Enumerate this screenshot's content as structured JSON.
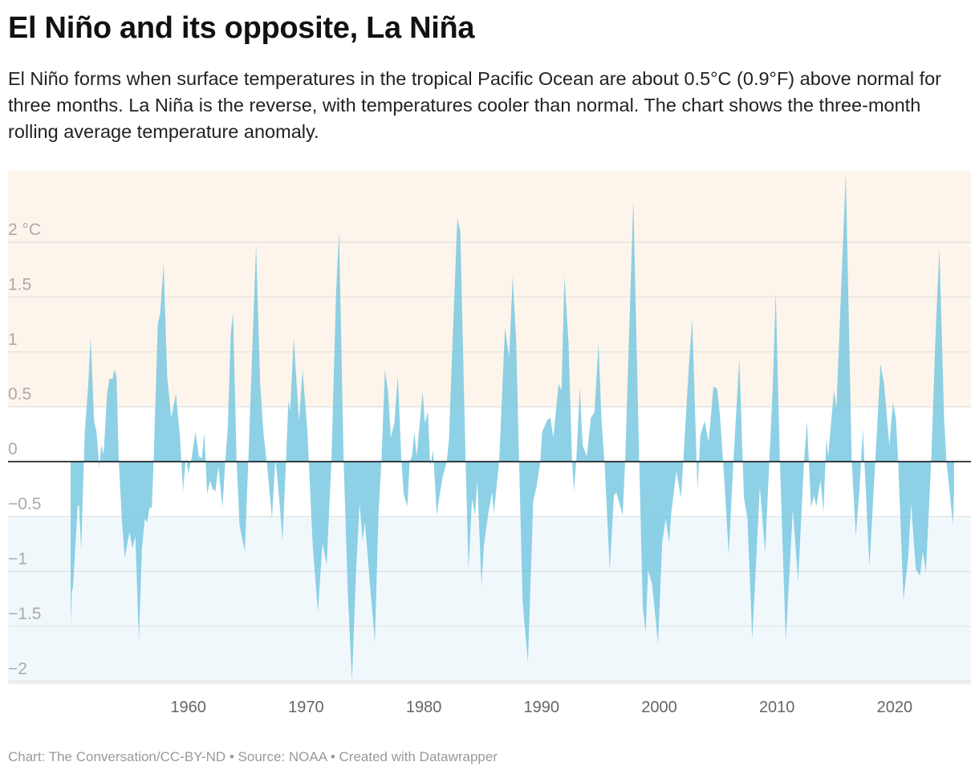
{
  "title": "El Niño and its opposite, La Niña",
  "subtitle": "El Niño forms when surface temperatures in the tropical Pacific Ocean are about 0.5°C (0.9°F) above normal for three months. La Niña is the reverse, with temperatures cooler than normal. The chart shows the three-month rolling average temperature anomaly.",
  "footer": "Chart: The Conversation/CC-BY-ND • Source: NOAA • Created with Datawrapper",
  "chart_data": {
    "type": "area",
    "title": "El Niño and its opposite, La Niña",
    "xlabel": "",
    "ylabel": "",
    "xlim": [
      1950,
      2025.1
    ],
    "ylim": [
      -2.02,
      2.65
    ],
    "grid": true,
    "y_ticks": [
      {
        "value": 2,
        "label": "2 °C"
      },
      {
        "value": 1.5,
        "label": "1.5"
      },
      {
        "value": 1,
        "label": "1"
      },
      {
        "value": 0.5,
        "label": "0.5"
      },
      {
        "value": 0,
        "label": "0"
      },
      {
        "value": -0.5,
        "label": "−0.5"
      },
      {
        "value": -1,
        "label": "−1"
      },
      {
        "value": -1.5,
        "label": "−1.5"
      },
      {
        "value": -2,
        "label": "−2"
      }
    ],
    "x_ticks": [
      {
        "value": 1960,
        "label": "1960"
      },
      {
        "value": 1970,
        "label": "1970"
      },
      {
        "value": 1980,
        "label": "1980"
      },
      {
        "value": 1990,
        "label": "1990"
      },
      {
        "value": 2000,
        "label": "2000"
      },
      {
        "value": 2010,
        "label": "2010"
      },
      {
        "value": 2020,
        "label": "2020"
      }
    ],
    "bands": [
      {
        "from": 0.5,
        "to": 2.65,
        "color": "#fdf5eb"
      },
      {
        "from": -2.02,
        "to": -0.5,
        "color": "#f1f8fc"
      }
    ],
    "colors": {
      "area": "#72c6e0",
      "zero_line": "#111111",
      "grid": "#e2e2e2"
    },
    "points": [
      [
        1950.0,
        -1.5
      ],
      [
        1950.1,
        -1.18
      ],
      [
        1950.2,
        -1.15
      ],
      [
        1950.6,
        -0.41
      ],
      [
        1950.7,
        -0.39
      ],
      [
        1950.9,
        -0.8
      ],
      [
        1951.2,
        0.27
      ],
      [
        1951.5,
        0.71
      ],
      [
        1951.7,
        1.14
      ],
      [
        1952.0,
        0.37
      ],
      [
        1952.2,
        0.27
      ],
      [
        1952.45,
        -0.06
      ],
      [
        1952.6,
        0.15
      ],
      [
        1952.8,
        0.07
      ],
      [
        1953.1,
        0.62
      ],
      [
        1953.3,
        0.76
      ],
      [
        1953.55,
        0.75
      ],
      [
        1953.7,
        0.84
      ],
      [
        1953.9,
        0.78
      ],
      [
        1954.1,
        -0.01
      ],
      [
        1954.35,
        -0.52
      ],
      [
        1954.6,
        -0.88
      ],
      [
        1955.0,
        -0.64
      ],
      [
        1955.25,
        -0.79
      ],
      [
        1955.5,
        -0.68
      ],
      [
        1955.8,
        -1.64
      ],
      [
        1956.05,
        -0.8
      ],
      [
        1956.3,
        -0.52
      ],
      [
        1956.5,
        -0.55
      ],
      [
        1956.7,
        -0.42
      ],
      [
        1956.9,
        -0.42
      ],
      [
        1957.05,
        0
      ],
      [
        1957.4,
        1.25
      ],
      [
        1957.6,
        1.35
      ],
      [
        1957.9,
        1.8
      ],
      [
        1958.2,
        0.78
      ],
      [
        1958.55,
        0.4
      ],
      [
        1958.95,
        0.62
      ],
      [
        1959.3,
        0.21
      ],
      [
        1959.55,
        -0.27
      ],
      [
        1959.8,
        0.05
      ],
      [
        1960.0,
        -0.11
      ],
      [
        1960.25,
        0.02
      ],
      [
        1960.6,
        0.27
      ],
      [
        1960.9,
        0.05
      ],
      [
        1961.15,
        0.03
      ],
      [
        1961.35,
        0.27
      ],
      [
        1961.6,
        -0.3
      ],
      [
        1961.85,
        -0.17
      ],
      [
        1962.05,
        -0.25
      ],
      [
        1962.3,
        -0.27
      ],
      [
        1962.55,
        -0.04
      ],
      [
        1962.9,
        -0.42
      ],
      [
        1963.15,
        0.02
      ],
      [
        1963.35,
        0.3
      ],
      [
        1963.6,
        1.16
      ],
      [
        1963.8,
        1.36
      ],
      [
        1964.1,
        0.02
      ],
      [
        1964.35,
        -0.58
      ],
      [
        1964.8,
        -0.82
      ],
      [
        1965.1,
        0.02
      ],
      [
        1965.75,
        1.98
      ],
      [
        1966.1,
        0.71
      ],
      [
        1966.4,
        0.24
      ],
      [
        1966.7,
        -0.04
      ],
      [
        1967.1,
        -0.52
      ],
      [
        1967.4,
        0.03
      ],
      [
        1967.75,
        -0.38
      ],
      [
        1968.0,
        -0.72
      ],
      [
        1968.3,
        0.02
      ],
      [
        1968.5,
        0.56
      ],
      [
        1968.65,
        0.46
      ],
      [
        1968.95,
        1.13
      ],
      [
        1969.4,
        0.37
      ],
      [
        1969.7,
        0.84
      ],
      [
        1970.1,
        0.3
      ],
      [
        1970.55,
        -0.74
      ],
      [
        1971.0,
        -1.37
      ],
      [
        1971.4,
        -0.74
      ],
      [
        1971.75,
        -0.94
      ],
      [
        1972.15,
        -0.01
      ],
      [
        1972.55,
        1.54
      ],
      [
        1972.8,
        2.1
      ],
      [
        1973.2,
        -0.01
      ],
      [
        1973.55,
        -1.21
      ],
      [
        1973.9,
        -2.0
      ],
      [
        1974.25,
        -1.0
      ],
      [
        1974.55,
        -0.38
      ],
      [
        1974.8,
        -0.72
      ],
      [
        1975.0,
        -0.55
      ],
      [
        1975.45,
        -1.15
      ],
      [
        1975.85,
        -1.64
      ],
      [
        1976.15,
        -0.49
      ],
      [
        1976.4,
        0
      ],
      [
        1976.7,
        0.84
      ],
      [
        1976.95,
        0.65
      ],
      [
        1977.2,
        0.22
      ],
      [
        1977.5,
        0.35
      ],
      [
        1977.8,
        0.79
      ],
      [
        1978.1,
        0
      ],
      [
        1978.3,
        -0.3
      ],
      [
        1978.6,
        -0.41
      ],
      [
        1978.8,
        0
      ],
      [
        1979.0,
        0.05
      ],
      [
        1979.2,
        0.27
      ],
      [
        1979.4,
        0.05
      ],
      [
        1979.9,
        0.64
      ],
      [
        1980.1,
        0.35
      ],
      [
        1980.35,
        0.46
      ],
      [
        1980.55,
        -0.04
      ],
      [
        1980.8,
        0.1
      ],
      [
        1981.1,
        -0.49
      ],
      [
        1981.4,
        -0.27
      ],
      [
        1981.6,
        -0.14
      ],
      [
        1981.95,
        0
      ],
      [
        1982.15,
        0.21
      ],
      [
        1982.3,
        0.68
      ],
      [
        1982.85,
        2.22
      ],
      [
        1983.1,
        2.1
      ],
      [
        1983.55,
        0
      ],
      [
        1983.8,
        -0.98
      ],
      [
        1984.1,
        -0.34
      ],
      [
        1984.35,
        -0.49
      ],
      [
        1984.55,
        -0.17
      ],
      [
        1984.9,
        -1.13
      ],
      [
        1985.1,
        -0.77
      ],
      [
        1985.45,
        -0.49
      ],
      [
        1985.8,
        -0.28
      ],
      [
        1985.95,
        -0.47
      ],
      [
        1986.4,
        0
      ],
      [
        1986.9,
        1.22
      ],
      [
        1987.25,
        0.95
      ],
      [
        1987.55,
        1.69
      ],
      [
        1987.85,
        1.09
      ],
      [
        1988.1,
        0
      ],
      [
        1988.4,
        -1.28
      ],
      [
        1988.85,
        -1.83
      ],
      [
        1989.3,
        -0.36
      ],
      [
        1989.6,
        -0.22
      ],
      [
        1989.9,
        0
      ],
      [
        1990.05,
        0.27
      ],
      [
        1990.5,
        0.38
      ],
      [
        1990.75,
        0.4
      ],
      [
        1991.0,
        0.22
      ],
      [
        1991.45,
        0.71
      ],
      [
        1991.7,
        0.65
      ],
      [
        1991.95,
        1.69
      ],
      [
        1992.3,
        1.08
      ],
      [
        1992.6,
        0
      ],
      [
        1992.75,
        -0.27
      ],
      [
        1992.95,
        0
      ],
      [
        1993.25,
        0.68
      ],
      [
        1993.5,
        0.15
      ],
      [
        1993.85,
        0.05
      ],
      [
        1994.2,
        0.4
      ],
      [
        1994.5,
        0.45
      ],
      [
        1994.85,
        1.08
      ],
      [
        1995.1,
        0.37
      ],
      [
        1995.35,
        0
      ],
      [
        1995.8,
        -0.99
      ],
      [
        1996.15,
        -0.31
      ],
      [
        1996.35,
        -0.28
      ],
      [
        1996.9,
        -0.49
      ],
      [
        1997.1,
        0
      ],
      [
        1997.8,
        2.39
      ],
      [
        1998.3,
        0
      ],
      [
        1998.6,
        -1.32
      ],
      [
        1998.85,
        -1.56
      ],
      [
        1999.05,
        -0.99
      ],
      [
        1999.4,
        -1.12
      ],
      [
        1999.9,
        -1.66
      ],
      [
        2000.25,
        -0.74
      ],
      [
        2000.55,
        -0.52
      ],
      [
        2000.85,
        -0.74
      ],
      [
        2001.0,
        -0.49
      ],
      [
        2001.45,
        -0.09
      ],
      [
        2001.85,
        -0.33
      ],
      [
        2002.05,
        0.02
      ],
      [
        2002.5,
        0.84
      ],
      [
        2002.8,
        1.3
      ],
      [
        2003.25,
        -0.25
      ],
      [
        2003.5,
        0.24
      ],
      [
        2003.85,
        0.37
      ],
      [
        2004.2,
        0.18
      ],
      [
        2004.6,
        0.68
      ],
      [
        2004.9,
        0.67
      ],
      [
        2005.15,
        0.43
      ],
      [
        2005.5,
        -0.12
      ],
      [
        2005.9,
        -0.85
      ],
      [
        2006.3,
        0
      ],
      [
        2006.8,
        0.94
      ],
      [
        2007.2,
        -0.33
      ],
      [
        2007.5,
        -0.52
      ],
      [
        2007.9,
        -1.62
      ],
      [
        2008.55,
        -0.23
      ],
      [
        2009.0,
        -0.83
      ],
      [
        2009.35,
        0
      ],
      [
        2009.65,
        0.71
      ],
      [
        2009.9,
        1.55
      ],
      [
        2010.25,
        0
      ],
      [
        2010.75,
        -1.64
      ],
      [
        2011.35,
        -0.44
      ],
      [
        2011.8,
        -1.09
      ],
      [
        2012.3,
        0
      ],
      [
        2012.55,
        0.37
      ],
      [
        2012.9,
        -0.42
      ],
      [
        2013.15,
        -0.31
      ],
      [
        2013.35,
        -0.41
      ],
      [
        2013.7,
        -0.17
      ],
      [
        2013.95,
        -0.46
      ],
      [
        2014.2,
        0.21
      ],
      [
        2014.35,
        0.05
      ],
      [
        2014.85,
        0.65
      ],
      [
        2015.05,
        0.49
      ],
      [
        2015.85,
        2.63
      ],
      [
        2016.35,
        0
      ],
      [
        2016.7,
        -0.68
      ],
      [
        2017.0,
        -0.27
      ],
      [
        2017.3,
        0.3
      ],
      [
        2017.85,
        -0.96
      ],
      [
        2018.35,
        0
      ],
      [
        2018.8,
        0.89
      ],
      [
        2019.1,
        0.71
      ],
      [
        2019.55,
        0.15
      ],
      [
        2019.85,
        0.54
      ],
      [
        2020.1,
        0.4
      ],
      [
        2020.3,
        0
      ],
      [
        2020.75,
        -1.26
      ],
      [
        2021.15,
        -0.87
      ],
      [
        2021.4,
        -0.39
      ],
      [
        2021.8,
        -0.98
      ],
      [
        2022.15,
        -1.04
      ],
      [
        2022.4,
        -0.82
      ],
      [
        2022.65,
        -1.01
      ],
      [
        2023.1,
        0
      ],
      [
        2023.45,
        1.09
      ],
      [
        2023.8,
        1.95
      ],
      [
        2024.2,
        0.4
      ],
      [
        2024.4,
        0
      ],
      [
        2024.65,
        -0.25
      ],
      [
        2024.95,
        -0.58
      ],
      [
        2025.05,
        -0.25
      ]
    ]
  }
}
